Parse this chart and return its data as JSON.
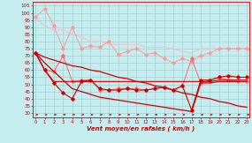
{
  "x": [
    0,
    1,
    2,
    3,
    4,
    5,
    6,
    7,
    8,
    9,
    10,
    11,
    12,
    13,
    14,
    15,
    16,
    17,
    18,
    19,
    20,
    21,
    22,
    23
  ],
  "line_rafales_max": [
    97,
    103,
    91,
    75,
    90,
    75,
    77,
    76,
    80,
    71,
    73,
    75,
    71,
    72,
    68,
    65,
    68,
    66,
    70,
    72,
    75,
    75,
    75,
    75
  ],
  "line_rafales_moy": [
    97,
    91,
    88,
    88,
    85,
    83,
    80,
    80,
    78,
    78,
    78,
    78,
    76,
    76,
    76,
    75,
    73,
    72,
    75,
    75,
    75,
    75,
    75,
    75
  ],
  "line_vent_max": [
    72,
    60,
    59,
    70,
    52,
    53,
    53,
    46,
    46,
    47,
    47,
    47,
    46,
    47,
    48,
    46,
    49,
    68,
    51,
    53,
    55,
    53,
    52,
    52
  ],
  "line_vent_min": [
    72,
    60,
    51,
    44,
    40,
    52,
    53,
    47,
    46,
    46,
    47,
    46,
    46,
    47,
    48,
    46,
    49,
    32,
    53,
    53,
    55,
    56,
    55,
    55
  ],
  "line_diag_top": [
    72,
    69,
    67,
    65,
    63,
    62,
    60,
    59,
    57,
    55,
    54,
    52,
    51,
    49,
    48,
    46,
    44,
    43,
    41,
    40,
    38,
    37,
    35,
    34
  ],
  "line_diag_bot": [
    72,
    65,
    59,
    53,
    47,
    45,
    43,
    41,
    40,
    39,
    38,
    37,
    36,
    35,
    34,
    33,
    32,
    31,
    51,
    51,
    52,
    52,
    52,
    52
  ],
  "line_flat": [
    72,
    60,
    52,
    52,
    52,
    52,
    52,
    52,
    52,
    52,
    52,
    52,
    52,
    52,
    52,
    52,
    52,
    52,
    52,
    52,
    53,
    53,
    53,
    53
  ],
  "background_color": "#c5ecee",
  "grid_color": "#99cccc",
  "xlabel": "Vent moyen/en rafales ( km/h )",
  "ylabel_ticks": [
    30,
    35,
    40,
    45,
    50,
    55,
    60,
    65,
    70,
    75,
    80,
    85,
    90,
    95,
    100,
    105
  ],
  "ylim": [
    27,
    108
  ],
  "xlim": [
    -0.3,
    23.3
  ]
}
